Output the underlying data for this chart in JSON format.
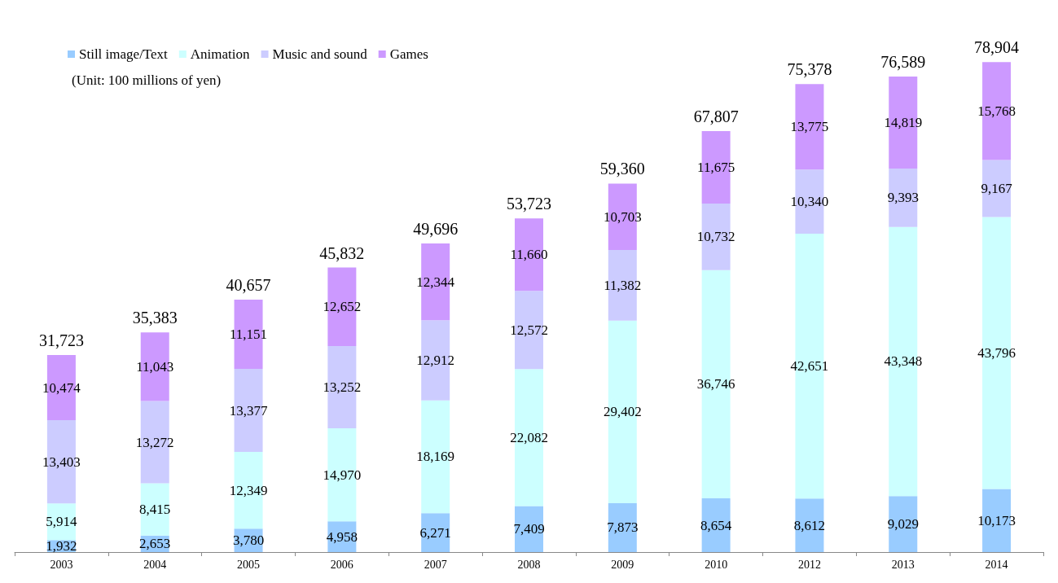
{
  "chart_data": {
    "type": "bar",
    "stacked": true,
    "legend": "top left",
    "categories": [
      "2003",
      "2004",
      "2005",
      "2006",
      "2007",
      "2008",
      "2009",
      "2010",
      "2012",
      "2013",
      "2014"
    ],
    "series": [
      {
        "name": "Still image/Text",
        "color": "#99ccff",
        "values": [
          1932,
          2653,
          3780,
          4958,
          6271,
          7409,
          7873,
          8654,
          8612,
          9029,
          10173
        ],
        "value_labels": [
          "1,932",
          "2,653",
          "3,780",
          "4,958",
          "6,271",
          "7,409",
          "7,873",
          "8,654",
          "8,612",
          "9,029",
          "10,173"
        ]
      },
      {
        "name": "Animation",
        "color": "#ccffff",
        "values": [
          5914,
          8415,
          12349,
          14970,
          18169,
          22082,
          29402,
          36746,
          42651,
          43348,
          43796
        ],
        "value_labels": [
          "5,914",
          "8,415",
          "12,349",
          "14,970",
          "18,169",
          "22,082",
          "29,402",
          "36,746",
          "42,651",
          "43,348",
          "43,796"
        ]
      },
      {
        "name": "Music and sound",
        "color": "#ccccff",
        "values": [
          13403,
          13272,
          13377,
          13252,
          12912,
          12572,
          11382,
          10732,
          10340,
          9393,
          9167
        ],
        "value_labels": [
          "13,403",
          "13,272",
          "13,377",
          "13,252",
          "12,912",
          "12,572",
          "11,382",
          "10,732",
          "10,340",
          "9,393",
          "9,167"
        ]
      },
      {
        "name": "Games",
        "color": "#cc99ff",
        "values": [
          10474,
          11043,
          11151,
          12652,
          12344,
          11660,
          10703,
          11675,
          13775,
          14819,
          15768
        ],
        "value_labels": [
          "10,474",
          "11,043",
          "11,151",
          "12,652",
          "12,344",
          "11,660",
          "10,703",
          "11,675",
          "13,775",
          "14,819",
          "15,768"
        ]
      }
    ],
    "totals": [
      "31,723",
      "35,383",
      "40,657",
      "45,832",
      "49,696",
      "53,723",
      "59,360",
      "67,807",
      "75,378",
      "76,589",
      "78,904"
    ],
    "annotations": [
      "(Unit: 100 millions of yen)"
    ]
  }
}
